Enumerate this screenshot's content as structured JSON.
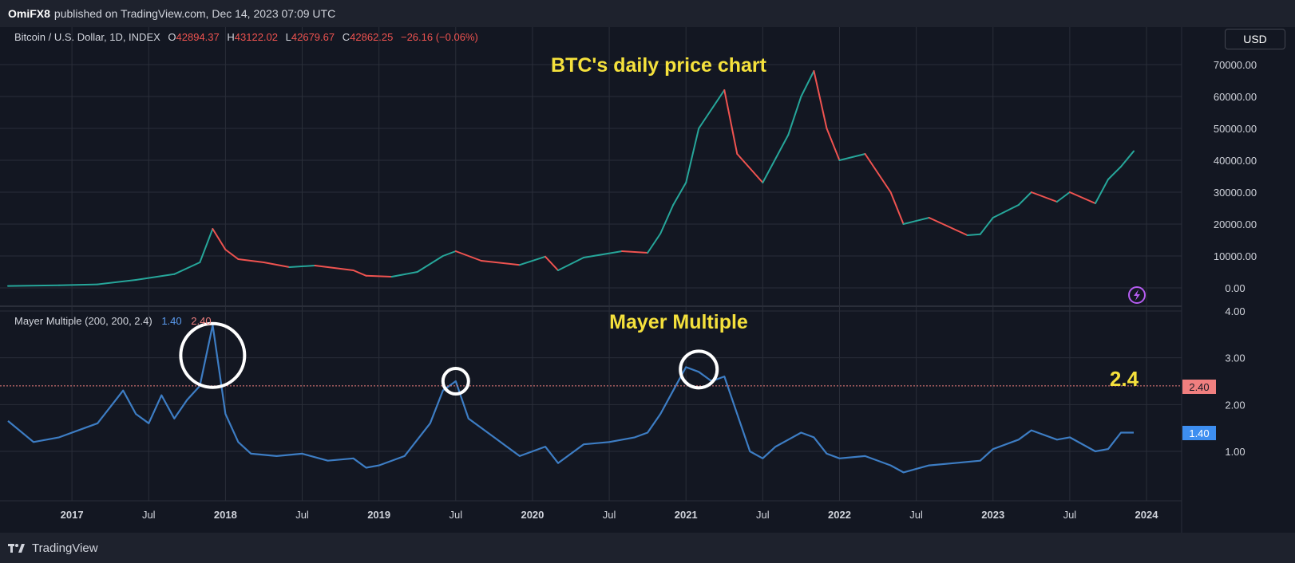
{
  "header": {
    "publisher": "OmiFX8",
    "published_text": "published on TradingView.com, Dec 14, 2023 07:09 UTC"
  },
  "currency_button": "USD",
  "legend": {
    "symbol": "Bitcoin / U.S. Dollar, 1D, INDEX",
    "o_label": "O",
    "o_value": "42894.37",
    "h_label": "H",
    "h_value": "43122.02",
    "l_label": "L",
    "l_value": "42679.67",
    "c_label": "C",
    "c_value": "42862.25",
    "change": "−26.16 (−0.06%)"
  },
  "indicator_legend": {
    "name": "Mayer Multiple (200, 200, 2.4)",
    "value1": "1.40",
    "value2": "2.40"
  },
  "annotations": {
    "price_title": "BTC's daily price chart",
    "mm_title": "Mayer Multiple",
    "threshold_label": "2.4"
  },
  "footer": {
    "brand": "TradingView"
  },
  "colors": {
    "background": "#131722",
    "grid": "#2a2e39",
    "text": "#d1d4dc",
    "annotation": "#f5e13c",
    "mm_line": "#3d7dc4",
    "threshold": "#f07f7f",
    "up": "#26a69a",
    "down": "#ef5350"
  },
  "chart_data": [
    {
      "type": "line",
      "title": "BTC's daily price chart",
      "x": [
        "2016-08",
        "2016-12",
        "2017-03",
        "2017-06",
        "2017-09",
        "2017-11",
        "2017-12",
        "2018-01",
        "2018-02",
        "2018-04",
        "2018-06",
        "2018-08",
        "2018-11",
        "2018-12",
        "2019-02",
        "2019-04",
        "2019-06",
        "2019-07",
        "2019-09",
        "2019-12",
        "2020-02",
        "2020-03",
        "2020-05",
        "2020-08",
        "2020-10",
        "2020-11",
        "2020-12",
        "2021-01",
        "2021-02",
        "2021-04",
        "2021-05",
        "2021-07",
        "2021-09",
        "2021-10",
        "2021-11",
        "2021-12",
        "2022-01",
        "2022-03",
        "2022-05",
        "2022-06",
        "2022-08",
        "2022-11",
        "2022-12",
        "2023-01",
        "2023-03",
        "2023-04",
        "2023-06",
        "2023-07",
        "2023-09",
        "2023-10",
        "2023-11",
        "2023-12"
      ],
      "values": [
        600,
        800,
        1100,
        2500,
        4300,
        8000,
        18500,
        12000,
        9000,
        8000,
        6500,
        7000,
        5500,
        3800,
        3500,
        5000,
        10000,
        11500,
        8500,
        7200,
        9800,
        5500,
        9500,
        11500,
        11000,
        17000,
        26000,
        33000,
        50000,
        62000,
        42000,
        33000,
        48000,
        60000,
        68000,
        50000,
        40000,
        42000,
        30000,
        20000,
        22000,
        16500,
        16800,
        22000,
        26000,
        30000,
        27000,
        30000,
        26500,
        34000,
        38000,
        42862
      ],
      "ylabel": "",
      "ylim": [
        0,
        75000
      ],
      "ytick_labels": [
        "0.00",
        "10000.00",
        "20000.00",
        "30000.00",
        "40000.00",
        "50000.00",
        "60000.00",
        "70000.00"
      ],
      "xtick_labels": [
        "2017",
        "Jul",
        "2018",
        "Jul",
        "2019",
        "Jul",
        "2020",
        "Jul",
        "2021",
        "Jul",
        "2022",
        "Jul",
        "2023",
        "Jul",
        "2024"
      ],
      "grid": true
    },
    {
      "type": "line",
      "title": "Mayer Multiple",
      "series": [
        {
          "name": "Mayer Multiple (200, 200, 2.4)",
          "x": [
            "2016-08",
            "2016-10",
            "2016-12",
            "2017-02",
            "2017-03",
            "2017-05",
            "2017-06",
            "2017-07",
            "2017-08",
            "2017-09",
            "2017-10",
            "2017-11",
            "2017-12",
            "2018-01",
            "2018-02",
            "2018-03",
            "2018-05",
            "2018-07",
            "2018-09",
            "2018-11",
            "2018-12",
            "2019-01",
            "2019-03",
            "2019-05",
            "2019-06",
            "2019-07",
            "2019-08",
            "2019-10",
            "2019-12",
            "2020-02",
            "2020-03",
            "2020-05",
            "2020-07",
            "2020-09",
            "2020-10",
            "2020-11",
            "2020-12",
            "2021-01",
            "2021-02",
            "2021-03",
            "2021-04",
            "2021-05",
            "2021-06",
            "2021-07",
            "2021-08",
            "2021-09",
            "2021-10",
            "2021-11",
            "2021-12",
            "2022-01",
            "2022-03",
            "2022-05",
            "2022-06",
            "2022-08",
            "2022-10",
            "2022-12",
            "2023-01",
            "2023-03",
            "2023-04",
            "2023-06",
            "2023-07",
            "2023-09",
            "2023-10",
            "2023-11",
            "2023-12"
          ],
          "values": [
            1.65,
            1.2,
            1.3,
            1.5,
            1.6,
            2.3,
            1.8,
            1.6,
            2.2,
            1.7,
            2.1,
            2.4,
            3.7,
            1.8,
            1.2,
            0.95,
            0.9,
            0.95,
            0.8,
            0.85,
            0.65,
            0.7,
            0.9,
            1.6,
            2.3,
            2.5,
            1.7,
            1.3,
            0.9,
            1.1,
            0.75,
            1.15,
            1.2,
            1.3,
            1.4,
            1.8,
            2.3,
            2.8,
            2.7,
            2.5,
            2.6,
            1.8,
            1.0,
            0.85,
            1.1,
            1.25,
            1.4,
            1.3,
            0.95,
            0.85,
            0.9,
            0.7,
            0.55,
            0.7,
            0.75,
            0.8,
            1.05,
            1.25,
            1.45,
            1.25,
            1.3,
            1.0,
            1.05,
            1.4,
            1.4
          ]
        }
      ],
      "threshold": 2.4,
      "ylim": [
        0.5,
        4.0
      ],
      "ytick_labels": [
        "1.00",
        "2.00",
        "3.00",
        "4.00"
      ],
      "grid": true
    }
  ]
}
